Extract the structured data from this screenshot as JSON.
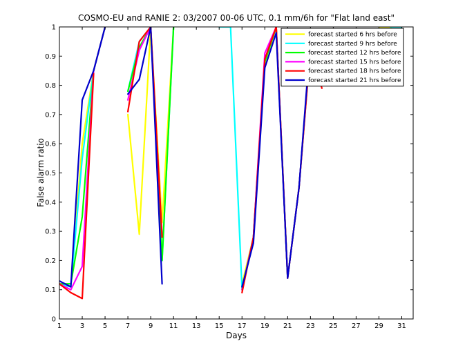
{
  "chart_data": {
    "type": "line",
    "title": "COSMO-EU and RANIE 2: 03/2007 00-06 UTC, 0.1 mm/6h for \"Flat land east\"",
    "xlabel": "Days",
    "ylabel": "False alarm ratio",
    "xlim": [
      1,
      32
    ],
    "ylim": [
      0,
      1
    ],
    "xticks": [
      "1",
      "3",
      "5",
      "7",
      "9",
      "11",
      "13",
      "15",
      "17",
      "19",
      "21",
      "23",
      "25",
      "27",
      "29",
      "31"
    ],
    "yticks": [
      "0",
      "0.1",
      "0.2",
      "0.3",
      "0.4",
      "0.5",
      "0.6",
      "0.7",
      "0.8",
      "0.9",
      "1"
    ],
    "grid": false,
    "legend_position": "top-right",
    "x": [
      1,
      2,
      3,
      4,
      5,
      6,
      7,
      8,
      9,
      10,
      11,
      12,
      13,
      14,
      15,
      16,
      17,
      18,
      19,
      20,
      21,
      22,
      23,
      24,
      25,
      26,
      27,
      28,
      29,
      30,
      31
    ],
    "series": [
      {
        "name": "forecast started 6 hrs before",
        "color": "#ffff00",
        "values": [
          0.12,
          0.11,
          0.6,
          0.85,
          1.0,
          null,
          0.7,
          0.29,
          1.0,
          0.33,
          1.0,
          null,
          null,
          null,
          null,
          null,
          0.12,
          0.28,
          0.87,
          1.0,
          0.14,
          0.45,
          0.93,
          0.85,
          null,
          null,
          null,
          null,
          1.0,
          1.0,
          0.94
        ]
      },
      {
        "name": "forecast started 9 hrs before",
        "color": "#00ffff",
        "values": [
          0.12,
          0.11,
          0.55,
          0.85,
          1.0,
          null,
          0.78,
          0.95,
          1.0,
          0.2,
          1.0,
          null,
          null,
          null,
          1.0,
          1.0,
          0.1,
          0.28,
          0.88,
          1.0,
          0.14,
          0.45,
          0.94,
          0.86,
          null,
          null,
          null,
          null,
          null,
          1.0,
          1.0
        ]
      },
      {
        "name": "forecast started 12 hrs before",
        "color": "#00ff00",
        "values": [
          0.12,
          0.12,
          0.35,
          0.85,
          1.0,
          null,
          0.78,
          0.93,
          1.0,
          0.2,
          1.0,
          null,
          null,
          null,
          null,
          null,
          0.1,
          0.28,
          0.88,
          1.0,
          0.14,
          0.45,
          0.94,
          0.85,
          null,
          null,
          null,
          null,
          null,
          null,
          null
        ]
      },
      {
        "name": "forecast started 15 hrs before",
        "color": "#ff00ff",
        "values": [
          0.12,
          0.1,
          0.18,
          0.85,
          1.0,
          null,
          0.75,
          0.92,
          1.0,
          0.28,
          null,
          null,
          null,
          null,
          null,
          null,
          0.1,
          0.28,
          0.91,
          1.0,
          0.14,
          0.45,
          0.94,
          0.83,
          null,
          null,
          null,
          null,
          null,
          null,
          null
        ]
      },
      {
        "name": "forecast started 18 hrs before",
        "color": "#ff0000",
        "values": [
          0.12,
          0.09,
          0.07,
          0.84,
          null,
          null,
          0.71,
          0.95,
          1.0,
          0.28,
          null,
          null,
          null,
          null,
          null,
          null,
          0.09,
          0.28,
          0.89,
          1.0,
          0.14,
          0.45,
          0.93,
          0.79,
          null,
          null,
          null,
          null,
          null,
          null,
          null
        ]
      },
      {
        "name": "forecast started 21 hrs before",
        "color": "#0000cc",
        "values": [
          0.13,
          0.11,
          0.75,
          0.85,
          1.0,
          null,
          0.77,
          0.82,
          1.0,
          0.12,
          null,
          null,
          null,
          null,
          null,
          null,
          0.11,
          0.26,
          0.86,
          0.98,
          0.14,
          0.45,
          0.96,
          0.82,
          null,
          null,
          null,
          null,
          null,
          null,
          null
        ]
      }
    ]
  }
}
